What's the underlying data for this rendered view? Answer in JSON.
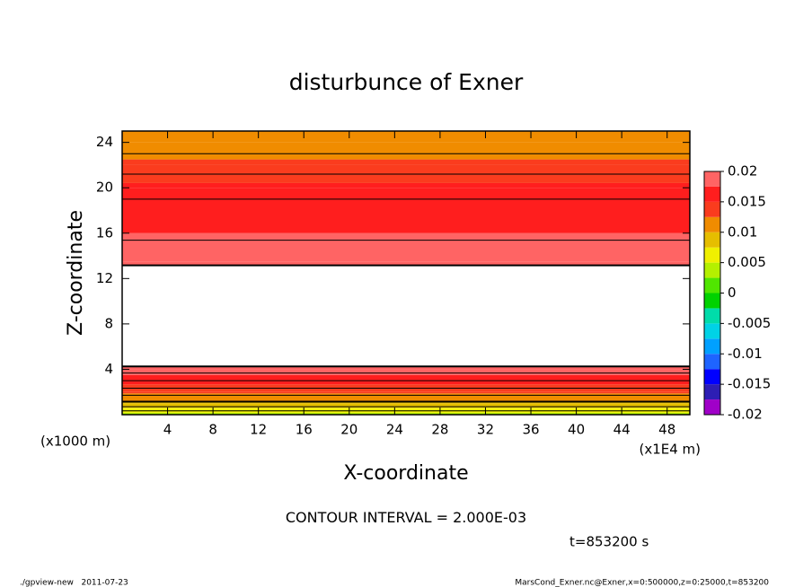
{
  "chart_data": {
    "type": "contour",
    "title": "disturbunce of Exner",
    "xlabel": "X-coordinate",
    "ylabel": "Z-coordinate",
    "xunit": "(x1E4 m)",
    "yunit": "(x1000 m)",
    "xlim": [
      0,
      50
    ],
    "xticks": [
      4,
      8,
      12,
      16,
      20,
      24,
      28,
      32,
      36,
      40,
      44,
      48
    ],
    "ylim": [
      0,
      25
    ],
    "yticks": [
      4,
      8,
      12,
      16,
      20,
      24
    ],
    "z": [
      0,
      0.5,
      1,
      2,
      3,
      4,
      4.5,
      12.5,
      13.5,
      16,
      20,
      22,
      24,
      25
    ],
    "values": [
      0.004,
      0.007,
      0.0095,
      0.013,
      0.016,
      0.019,
      0.021,
      0.021,
      0.0195,
      0.0175,
      0.0155,
      0.013,
      0.011,
      0.0105
    ],
    "colorbar_levels": [
      -0.02,
      -0.0175,
      -0.015,
      -0.0125,
      -0.01,
      -0.0075,
      -0.005,
      -0.0025,
      0,
      0.0025,
      0.005,
      0.0075,
      0.01,
      0.0125,
      0.015,
      0.0175,
      0.02
    ],
    "colorbar_colors": [
      "#a000c8",
      "#2d1eb4",
      "#0000ff",
      "#1e64ff",
      "#00a0ff",
      "#00d2e6",
      "#00dcaa",
      "#00d200",
      "#50e600",
      "#b4f000",
      "#f0f000",
      "#e6be00",
      "#f08c00",
      "#fa3c1e",
      "#ff1e1e",
      "#ff6464"
    ],
    "colorbar_ticks": [
      -0.02,
      -0.015,
      -0.01,
      -0.005,
      0,
      0.005,
      0.01,
      0.015,
      0.02
    ],
    "contour_interval_prefix": "CONTOUR INTERVAL =",
    "contour_interval_label": "2.000E-03",
    "time_label": "t=853200 s",
    "footer_left": "./gpview-new   2011-07-23",
    "footer_right": "MarsCond_Exner.nc@Exner,x=0:500000,z=0:25000,t=853200"
  }
}
